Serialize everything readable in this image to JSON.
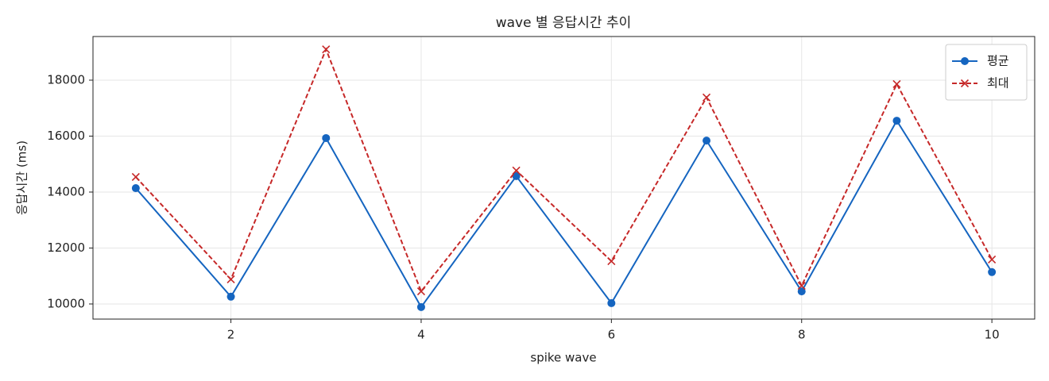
{
  "chart_data": {
    "type": "line",
    "title": "wave 별 응답시간 추이",
    "x_label": "spike wave",
    "y_label": "응답시간 (ms)",
    "x": [
      1,
      2,
      3,
      4,
      5,
      6,
      7,
      8,
      9,
      10
    ],
    "series": [
      {
        "name": "평균",
        "color": "#1565c0",
        "marker": "o",
        "linestyle": "solid",
        "values": [
          14140,
          10260,
          15930,
          9890,
          14570,
          10030,
          15840,
          10450,
          16550,
          11140
        ]
      },
      {
        "name": "최대",
        "color": "#c62828",
        "marker": "x",
        "linestyle": "dashed",
        "values": [
          14540,
          10880,
          19100,
          10450,
          14770,
          11530,
          17380,
          10650,
          17860,
          11590
        ]
      }
    ],
    "xlim": [
      0.55,
      10.45
    ],
    "ylim": [
      9460,
      19560
    ],
    "xticks": [
      2,
      4,
      6,
      8,
      10
    ],
    "yticks": [
      10000,
      12000,
      14000,
      16000,
      18000
    ],
    "grid": true,
    "legend": "upper right"
  }
}
